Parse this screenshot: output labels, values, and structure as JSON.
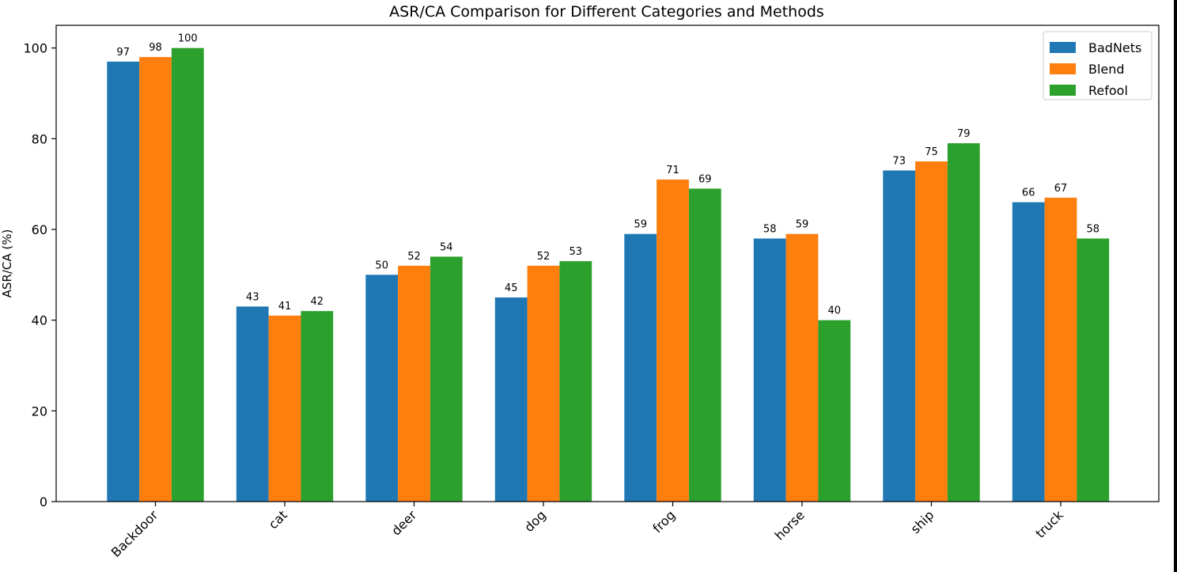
{
  "chart_data": {
    "type": "bar",
    "title": "ASR/CA Comparison for Different Categories and Methods",
    "xlabel": "",
    "ylabel": "ASR/CA (%)",
    "ylim": [
      0,
      105
    ],
    "yticks": [
      0,
      20,
      40,
      60,
      80,
      100
    ],
    "categories": [
      "Backdoor",
      "cat",
      "deer",
      "dog",
      "frog",
      "horse",
      "ship",
      "truck"
    ],
    "series": [
      {
        "name": "BadNets",
        "color": "#1f77b4",
        "values": [
          97,
          43,
          50,
          45,
          59,
          58,
          73,
          66
        ]
      },
      {
        "name": "Blend",
        "color": "#ff7f0e",
        "values": [
          98,
          41,
          52,
          52,
          71,
          59,
          75,
          67
        ]
      },
      {
        "name": "Refool",
        "color": "#2ca02c",
        "values": [
          100,
          42,
          54,
          53,
          69,
          40,
          79,
          58
        ]
      }
    ],
    "legend_position": "top-right",
    "grid": false,
    "data_labels": true
  }
}
